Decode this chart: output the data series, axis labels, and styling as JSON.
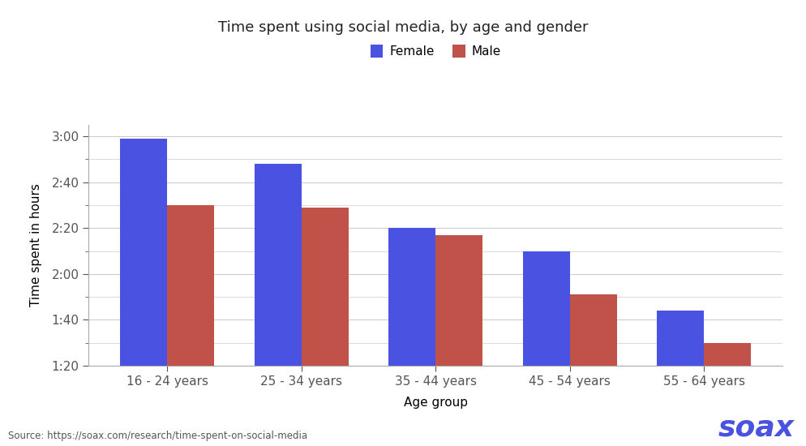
{
  "title": "Time spent using social media, by age and gender",
  "xlabel": "Age group",
  "ylabel": "Time spent in hours",
  "categories": [
    "16 - 24 years",
    "25 - 34 years",
    "35 - 44 years",
    "45 - 54 years",
    "55 - 64 years"
  ],
  "female_values": [
    179,
    168,
    140,
    130,
    104
  ],
  "male_values": [
    150,
    149,
    137,
    111,
    90
  ],
  "female_color": "#4a52e1",
  "male_color": "#c0524a",
  "ylim_min": 80,
  "ylim_max": 185,
  "yticks": [
    80,
    100,
    120,
    140,
    160,
    180
  ],
  "ytick_labels": [
    "1:20",
    "1:40",
    "2:00",
    "2:20",
    "2:40",
    "3:00"
  ],
  "legend_labels": [
    "Female",
    "Male"
  ],
  "source_text": "Source: https://soax.com/research/time-spent-on-social-media",
  "soax_text": "soax",
  "background_color": "#ffffff",
  "grid_color": "#cccccc"
}
